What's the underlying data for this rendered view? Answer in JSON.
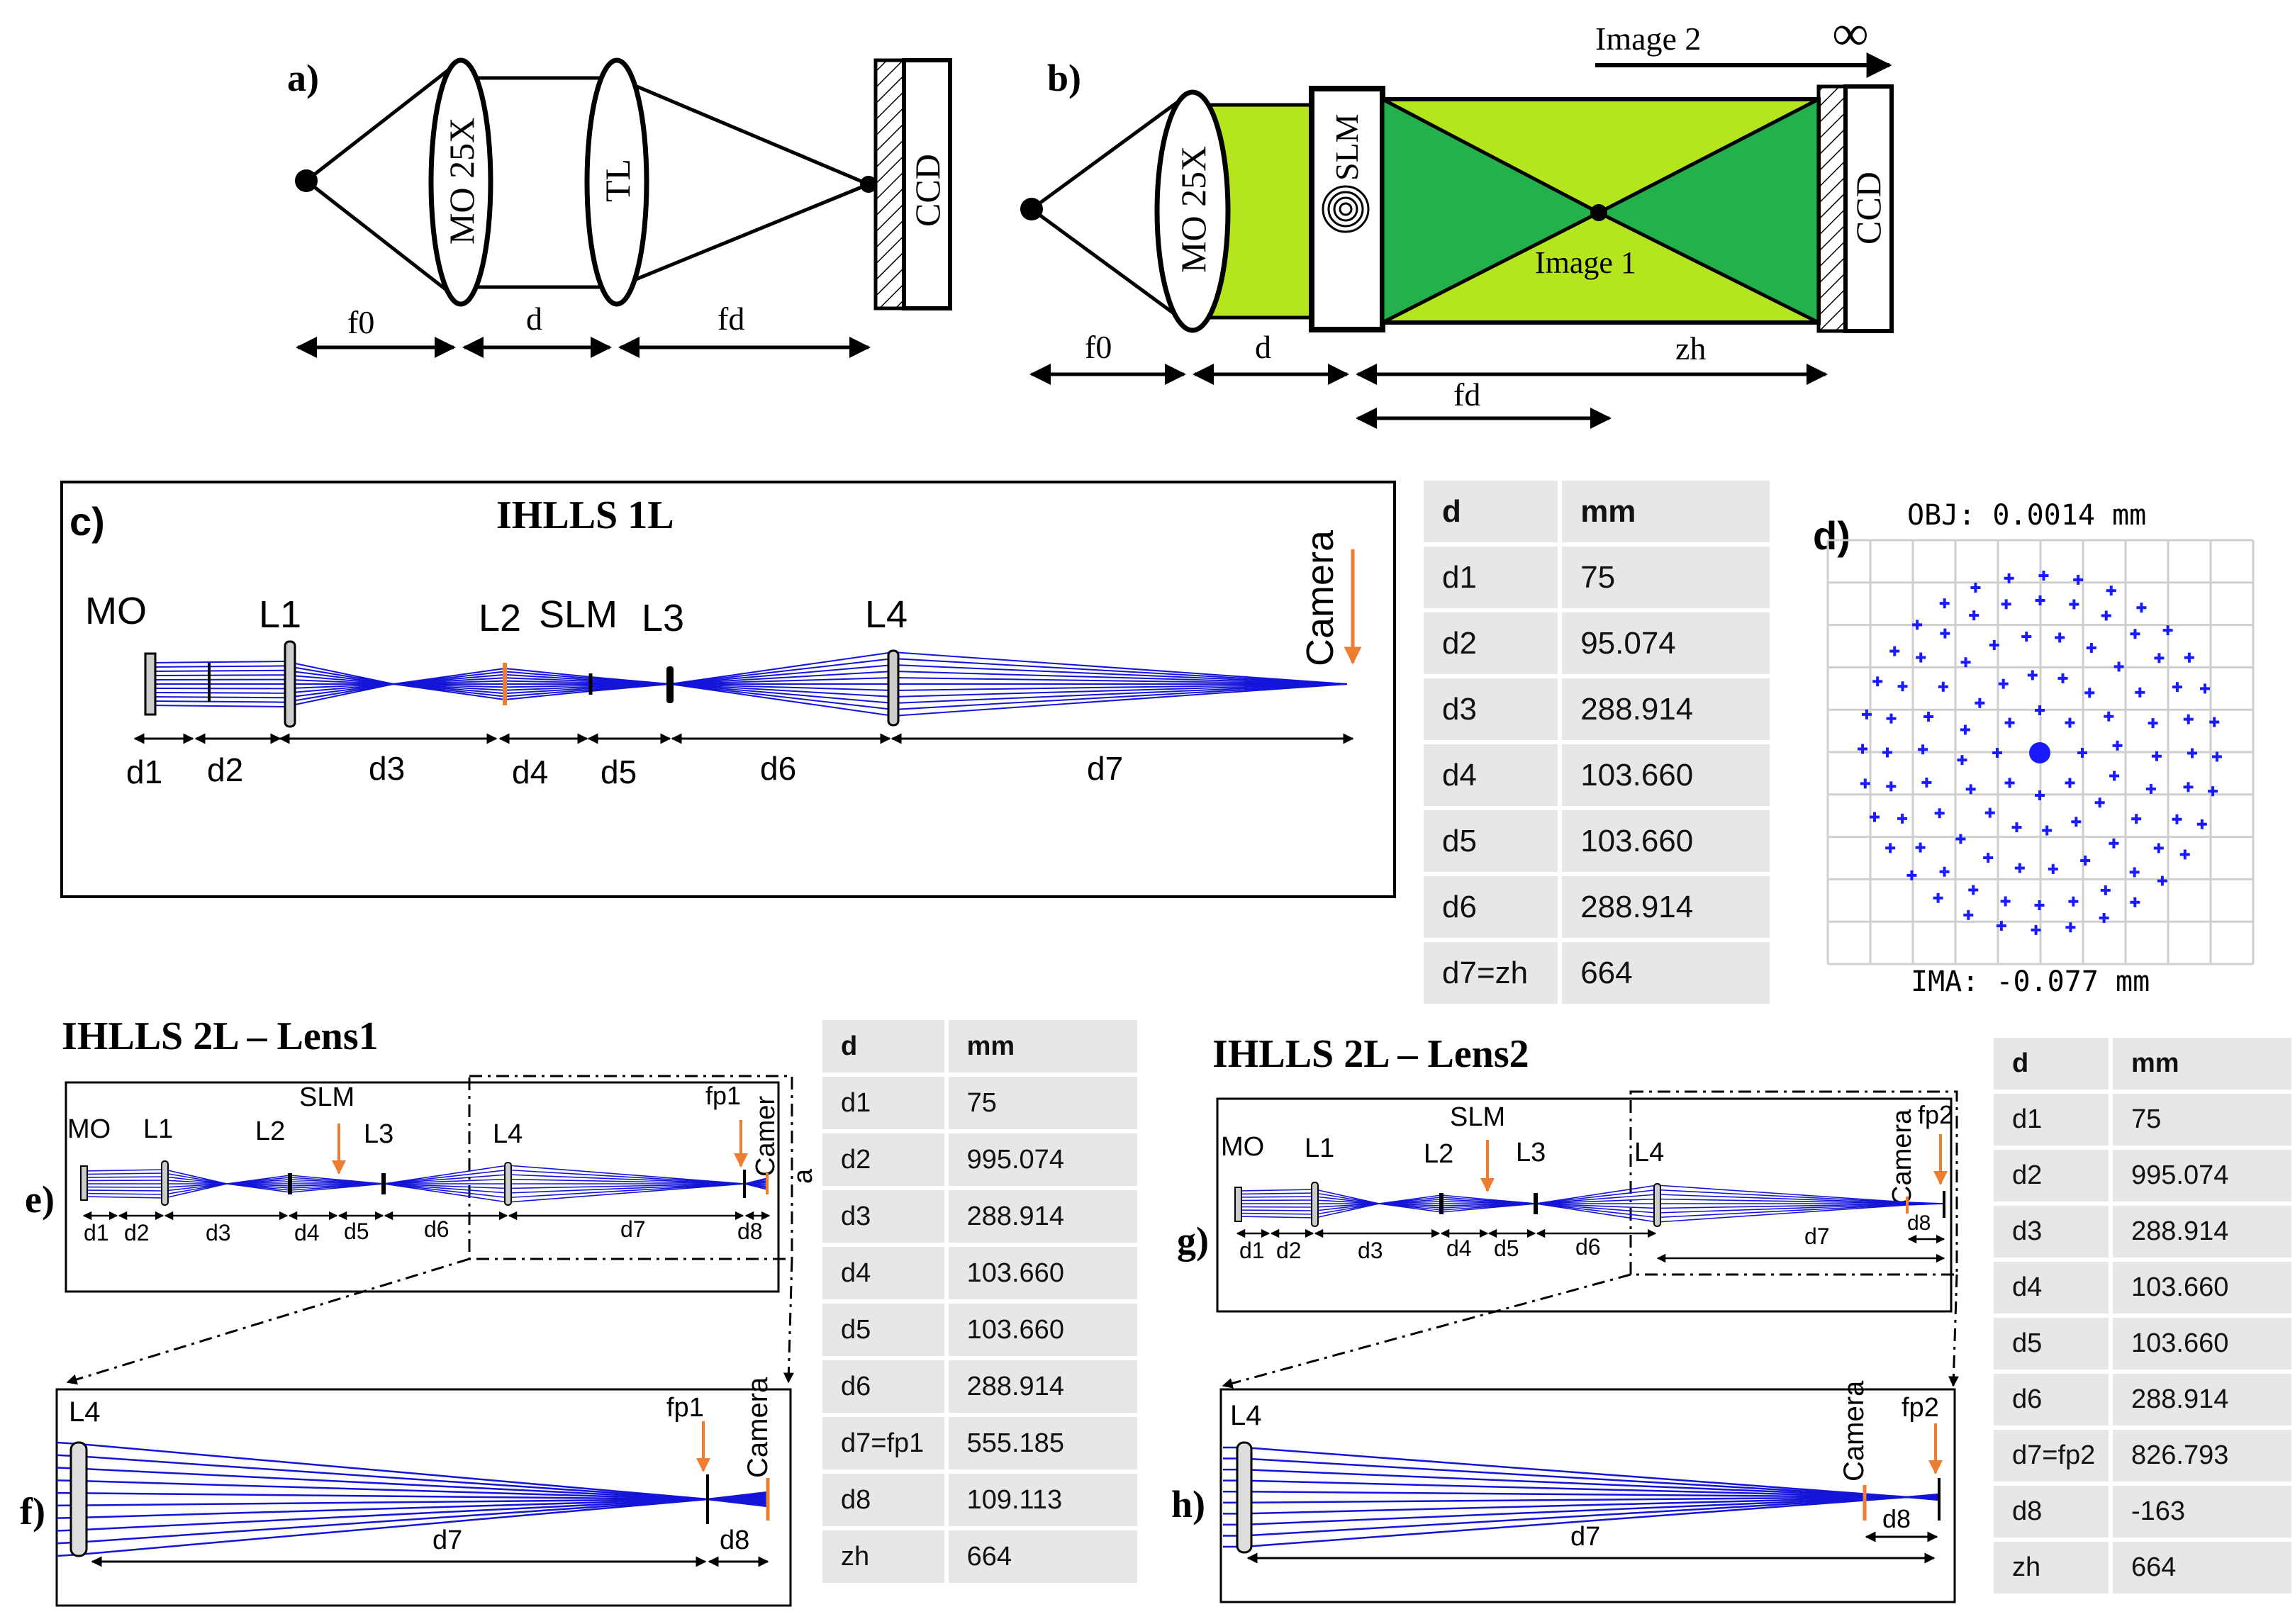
{
  "panel_a": {
    "label": "a)",
    "objective": "MO 25X",
    "tube_lens": "TL",
    "detector": "CCD",
    "dist_f0": "f0",
    "dist_d": "d",
    "dist_fd": "fd"
  },
  "panel_b": {
    "label": "b)",
    "objective": "MO 25X",
    "slm": "SLM",
    "detector": "CCD",
    "image2": "Image 2",
    "infinity": "∞",
    "image1": "Image 1",
    "dist_f0": "f0",
    "dist_d": "d",
    "dist_zh": "zh",
    "dist_fd": "fd"
  },
  "panel_c": {
    "label": "c)",
    "title": "IHLLS 1L",
    "mo": "MO",
    "l1": "L1",
    "l2": "L2",
    "slm": "SLM",
    "l3": "L3",
    "l4": "L4",
    "camera": "Camera",
    "d1": "d1",
    "d2": "d2",
    "d3": "d3",
    "d4": "d4",
    "d5": "d5",
    "d6": "d6",
    "d7": "d7"
  },
  "table_c": {
    "header": [
      "d",
      "mm"
    ],
    "rows": [
      [
        "d1",
        "75"
      ],
      [
        "d2",
        "95.074"
      ],
      [
        "d3",
        "288.914"
      ],
      [
        "d4",
        "103.660"
      ],
      [
        "d5",
        "103.660"
      ],
      [
        "d6",
        "288.914"
      ],
      [
        "d7=zh",
        "664"
      ]
    ]
  },
  "panel_d": {
    "label": "d)",
    "obj": "OBJ: 0.0014 mm",
    "ima": "IMA: -0.077 mm"
  },
  "panel_e": {
    "title": "IHLLS 2L – Lens1",
    "label": "e)",
    "mo": "MO",
    "l1": "L1",
    "l2": "L2",
    "slm": "SLM",
    "l3": "L3",
    "l4": "L4",
    "fp": "fp1",
    "camera": "Camer",
    "camera_tail": "a",
    "d1": "d1",
    "d2": "d2",
    "d3": "d3",
    "d4": "d4",
    "d5": "d5",
    "d6": "d6",
    "d7": "d7",
    "d8": "d8"
  },
  "panel_f": {
    "label": "f)",
    "l4": "L4",
    "fp": "fp1",
    "camera": "Camera",
    "d7": "d7",
    "d8": "d8"
  },
  "table_e": {
    "header": [
      "d",
      "mm"
    ],
    "rows": [
      [
        "d1",
        "75"
      ],
      [
        "d2",
        "995.074"
      ],
      [
        "d3",
        "288.914"
      ],
      [
        "d4",
        "103.660"
      ],
      [
        "d5",
        "103.660"
      ],
      [
        "d6",
        "288.914"
      ],
      [
        "d7=fp1",
        "555.185"
      ],
      [
        "d8",
        "109.113"
      ],
      [
        "zh",
        "664"
      ]
    ]
  },
  "panel_g": {
    "title": "IHLLS 2L – Lens2",
    "label": "g)",
    "mo": "MO",
    "l1": "L1",
    "l2": "L2",
    "slm": "SLM",
    "l3": "L3",
    "l4": "L4",
    "fp": "fp2",
    "camera": "Camera",
    "d1": "d1",
    "d2": "d2",
    "d3": "d3",
    "d4": "d4",
    "d5": "d5",
    "d6": "d6",
    "d7": "d7",
    "d8": "d8"
  },
  "panel_h": {
    "label": "h)",
    "l4": "L4",
    "fp": "fp2",
    "camera": "Camera",
    "d7": "d7",
    "d8": "d8"
  },
  "table_g": {
    "header": [
      "d",
      "mm"
    ],
    "rows": [
      [
        "d1",
        "75"
      ],
      [
        "d2",
        "995.074"
      ],
      [
        "d3",
        "288.914"
      ],
      [
        "d4",
        "103.660"
      ],
      [
        "d5",
        "103.660"
      ],
      [
        "d6",
        "288.914"
      ],
      [
        "d7=fp2",
        "826.793"
      ],
      [
        "d8",
        "-163"
      ],
      [
        "zh",
        "664"
      ]
    ]
  },
  "colors": {
    "ray": "#1414d8",
    "arrow_orange": "#ed7d31",
    "light_green": "#b5e61d",
    "dark_green": "#22b14c",
    "spot": "#1a1aff"
  }
}
